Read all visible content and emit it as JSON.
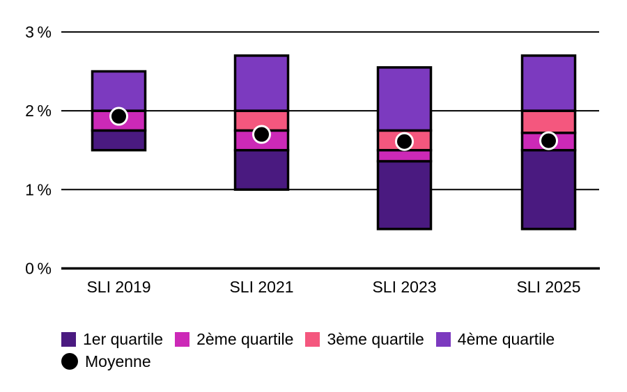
{
  "chart_data": {
    "type": "bar",
    "subtype": "stacked-quartile-range-with-mean",
    "title": "",
    "unit": "%",
    "categories": [
      "SLI 2019",
      "SLI 2021",
      "SLI 2023",
      "SLI 2025"
    ],
    "ylim": [
      0,
      3
    ],
    "grid": "horizontal",
    "yticks": [
      {
        "value": 0,
        "label": "0 %"
      },
      {
        "value": 1,
        "label": "1 %"
      },
      {
        "value": 2,
        "label": "2 %"
      },
      {
        "value": 3,
        "label": "3 %"
      }
    ],
    "groups": [
      {
        "category": "SLI 2019",
        "min": 1.5,
        "q1": 1.75,
        "median": 2.0,
        "q3": 2.0,
        "max": 2.5,
        "mean": 1.93
      },
      {
        "category": "SLI 2021",
        "min": 1.0,
        "q1": 1.5,
        "median": 1.75,
        "q3": 2.0,
        "max": 2.7,
        "mean": 1.7
      },
      {
        "category": "SLI 2023",
        "min": 0.5,
        "q1": 1.36,
        "median": 1.5,
        "q3": 1.75,
        "max": 2.55,
        "mean": 1.61
      },
      {
        "category": "SLI 2025",
        "min": 0.5,
        "q1": 1.5,
        "median": 1.72,
        "q3": 2.0,
        "max": 2.7,
        "mean": 1.62
      }
    ],
    "legend": {
      "position": "bottom-left",
      "items": [
        {
          "key": "q1",
          "label": "1er quartile",
          "color": "#4A1A80"
        },
        {
          "key": "q2",
          "label": "2ème quartile",
          "color": "#CC29B7"
        },
        {
          "key": "q3",
          "label": "3ème quartile",
          "color": "#F4577E"
        },
        {
          "key": "q4",
          "label": "4ème quartile",
          "color": "#7C3ABF"
        }
      ],
      "mean": {
        "label": "Moyenne",
        "color": "#000000",
        "shape": "circle"
      }
    },
    "style": {
      "outline_color": "#000000",
      "grid_color": "#000000",
      "text_color": "#000000",
      "background": "#FFFFFF",
      "mean_dot_ring": "#FFFFFF"
    }
  }
}
